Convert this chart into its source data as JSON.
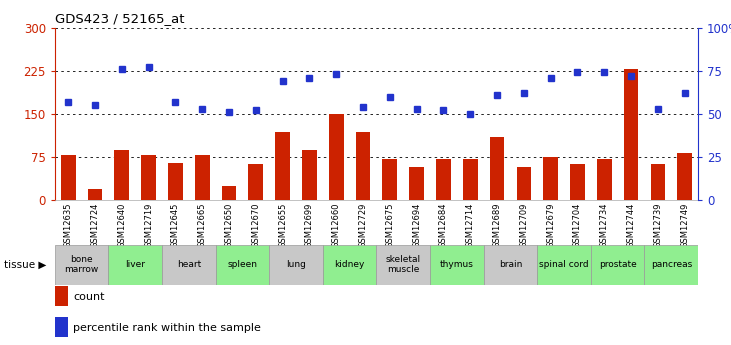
{
  "title": "GDS423 / 52165_at",
  "samples": [
    "GSM12635",
    "GSM12724",
    "GSM12640",
    "GSM12719",
    "GSM12645",
    "GSM12665",
    "GSM12650",
    "GSM12670",
    "GSM12655",
    "GSM12699",
    "GSM12660",
    "GSM12729",
    "GSM12675",
    "GSM12694",
    "GSM12684",
    "GSM12714",
    "GSM12689",
    "GSM12709",
    "GSM12679",
    "GSM12704",
    "GSM12734",
    "GSM12744",
    "GSM12739",
    "GSM12749"
  ],
  "counts": [
    78,
    20,
    88,
    78,
    65,
    78,
    25,
    62,
    118,
    88,
    150,
    118,
    72,
    58,
    72,
    72,
    110,
    58,
    75,
    62,
    72,
    228,
    62,
    82
  ],
  "percentiles_pct": [
    57,
    55,
    76,
    77,
    57,
    53,
    51,
    52,
    69,
    71,
    73,
    54,
    60,
    53,
    52,
    50,
    61,
    62,
    71,
    74,
    74,
    72,
    53,
    62
  ],
  "tissues": [
    {
      "name": "bone\nmarrow",
      "start": 0,
      "end": 2,
      "color": "#c8c8c8"
    },
    {
      "name": "liver",
      "start": 2,
      "end": 4,
      "color": "#90EE90"
    },
    {
      "name": "heart",
      "start": 4,
      "end": 6,
      "color": "#c8c8c8"
    },
    {
      "name": "spleen",
      "start": 6,
      "end": 8,
      "color": "#90EE90"
    },
    {
      "name": "lung",
      "start": 8,
      "end": 10,
      "color": "#c8c8c8"
    },
    {
      "name": "kidney",
      "start": 10,
      "end": 12,
      "color": "#90EE90"
    },
    {
      "name": "skeletal\nmuscle",
      "start": 12,
      "end": 14,
      "color": "#c8c8c8"
    },
    {
      "name": "thymus",
      "start": 14,
      "end": 16,
      "color": "#90EE90"
    },
    {
      "name": "brain",
      "start": 16,
      "end": 18,
      "color": "#c8c8c8"
    },
    {
      "name": "spinal cord",
      "start": 18,
      "end": 20,
      "color": "#90EE90"
    },
    {
      "name": "prostate",
      "start": 20,
      "end": 22,
      "color": "#90EE90"
    },
    {
      "name": "pancreas",
      "start": 22,
      "end": 24,
      "color": "#90EE90"
    }
  ],
  "ylim_left": [
    0,
    300
  ],
  "ylim_right": [
    0,
    100
  ],
  "yticks_left": [
    0,
    75,
    150,
    225,
    300
  ],
  "yticks_right": [
    0,
    25,
    50,
    75,
    100
  ],
  "bar_color": "#cc2200",
  "dot_color": "#2233cc",
  "plot_bg": "#ffffff",
  "grid_color": "#000000",
  "legend_count_label": "count",
  "legend_pct_label": "percentile rank within the sample"
}
